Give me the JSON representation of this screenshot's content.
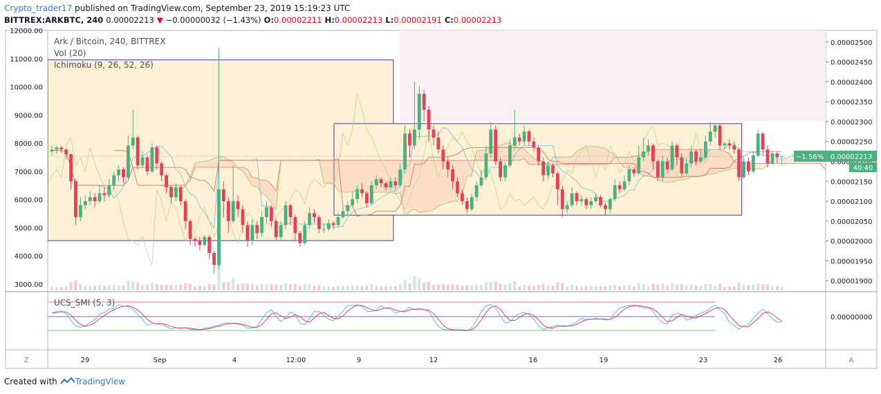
{
  "header": {
    "username": "Crypto_trader17",
    "published": "published on TradingView.com, September 23, 2019 15:19:23 UTC",
    "symbol": "BITTREX:ARKBTC, 240",
    "price": "0.00002213",
    "change_arrow": "▼",
    "change": "−0.00000032 (−1.43%)",
    "o_label": "O:",
    "o_value": "0.00002211",
    "h_label": "H:",
    "h_value": "0.00002213",
    "l_label": "L:",
    "l_value": "0.00002191",
    "c_label": "C:",
    "c_value": "0.00002213"
  },
  "legend": {
    "title": "Ark / Bitcoin, 240, BITTREX",
    "vol": "Vol (20)",
    "ichimoku": "Ichimoku (9, 26, 52, 26)",
    "smi": "UCS_SMI (5, 3)"
  },
  "price_badge": {
    "pct": "−1.56%",
    "price": "0.00002213",
    "countdown": "40:40"
  },
  "footer": {
    "created_with": "Created with",
    "brand": "TradingView"
  },
  "controls": {
    "left": "Z",
    "right": "A"
  },
  "colors": {
    "up": "#4caf7d",
    "down": "#e0425a",
    "badge": "#4caf7d",
    "brand": "#2e7bcf"
  },
  "chart_data": {
    "type": "candlestick",
    "title": "Ark / Bitcoin, 240, BITTREX",
    "left_axis_ticks": [
      "12000.00",
      "11000.00",
      "10000.00",
      "9000.00",
      "8000.00",
      "7000.00",
      "6000.00",
      "5000.00",
      "4000.00",
      "3000.00"
    ],
    "right_axis_ticks": [
      "0.00002500",
      "0.00002450",
      "0.00002400",
      "0.00002350",
      "0.00002300",
      "0.00002250",
      "0.00002200",
      "0.00002150",
      "0.00002100",
      "0.00002050",
      "0.00002000",
      "0.00001950",
      "0.00001900"
    ],
    "right_ylim": [
      1.89e-05,
      2.51e-05
    ],
    "x_ticks": [
      "29",
      "Sep",
      "4",
      "12:00",
      "9",
      "12",
      "16",
      "19",
      "23",
      "26"
    ],
    "smi_tick": "0.00000000",
    "candles": [
      [
        2.225e-05,
        2.23e-05,
        2.24e-05,
        2.215e-05
      ],
      [
        2.23e-05,
        2.235e-05,
        2.24e-05,
        2.22e-05
      ],
      [
        2.235e-05,
        2.23e-05,
        2.238e-05,
        2.222e-05
      ],
      [
        2.23e-05,
        2.218e-05,
        2.232e-05,
        2.205e-05
      ],
      [
        2.218e-05,
        2.15e-05,
        2.22e-05,
        2.13e-05
      ],
      [
        2.15e-05,
        2.06e-05,
        2.155e-05,
        2.04e-05
      ],
      [
        2.06e-05,
        2.09e-05,
        2.11e-05,
        2.05e-05
      ],
      [
        2.09e-05,
        2.1e-05,
        2.115e-05,
        2.08e-05
      ],
      [
        2.1e-05,
        2.11e-05,
        2.125e-05,
        2.09e-05
      ],
      [
        2.11e-05,
        2.1e-05,
        2.12e-05,
        2.085e-05
      ],
      [
        2.1e-05,
        2.12e-05,
        2.14e-05,
        2.095e-05
      ],
      [
        2.12e-05,
        2.115e-05,
        2.135e-05,
        2.1e-05
      ],
      [
        2.115e-05,
        2.14e-05,
        2.155e-05,
        2.11e-05
      ],
      [
        2.14e-05,
        2.165e-05,
        2.175e-05,
        2.13e-05
      ],
      [
        2.165e-05,
        2.18e-05,
        2.19e-05,
        2.15e-05
      ],
      [
        2.18e-05,
        2.16e-05,
        2.185e-05,
        2.145e-05
      ],
      [
        2.16e-05,
        2.24e-05,
        2.265e-05,
        2.155e-05
      ],
      [
        2.24e-05,
        2.26e-05,
        2.33e-05,
        2.23e-05
      ],
      [
        2.26e-05,
        2.19e-05,
        2.265e-05,
        2.18e-05
      ],
      [
        2.19e-05,
        2.21e-05,
        2.225e-05,
        2.185e-05
      ],
      [
        2.21e-05,
        2.175e-05,
        2.215e-05,
        2.165e-05
      ],
      [
        2.175e-05,
        2.235e-05,
        2.245e-05,
        2.17e-05
      ],
      [
        2.235e-05,
        2.195e-05,
        2.24e-05,
        2.18e-05
      ],
      [
        2.195e-05,
        2.165e-05,
        2.2e-05,
        2.15e-05
      ],
      [
        2.165e-05,
        2.135e-05,
        2.17e-05,
        2.12e-05
      ],
      [
        2.135e-05,
        2.11e-05,
        2.14e-05,
        2.095e-05
      ],
      [
        2.11e-05,
        2.135e-05,
        2.145e-05,
        2.1e-05
      ],
      [
        2.135e-05,
        2.1e-05,
        2.14e-05,
        2.09e-05
      ],
      [
        2.1e-05,
        2.05e-05,
        2.105e-05,
        2.03e-05
      ],
      [
        2.05e-05,
        2.005e-05,
        2.055e-05,
        1.99e-05
      ],
      [
        2.005e-05,
        2e-05,
        2.01e-05,
        1.985e-05
      ],
      [
        2e-05,
        1.99e-05,
        2.01e-05,
        1.975e-05
      ],
      [
        1.99e-05,
        2.01e-05,
        2.015e-05,
        1.985e-05
      ],
      [
        2.01e-05,
        1.97e-05,
        2.015e-05,
        1.955e-05
      ],
      [
        1.97e-05,
        1.94e-05,
        1.975e-05,
        1.92e-05
      ],
      [
        1.94e-05,
        2.13e-05,
        2.485e-05,
        1.93e-05
      ],
      [
        2.13e-05,
        2.1e-05,
        2.15e-05,
        2.06e-05
      ],
      [
        2.1e-05,
        2.05e-05,
        2.11e-05,
        2.02e-05
      ],
      [
        2.05e-05,
        2.1e-05,
        2.19e-05,
        2.045e-05
      ],
      [
        2.1e-05,
        2.08e-05,
        2.115e-05,
        2.06e-05
      ],
      [
        2.08e-05,
        2.04e-05,
        2.09e-05,
        2.02e-05
      ],
      [
        2.04e-05,
        2e-05,
        2.05e-05,
        1.985e-05
      ],
      [
        2e-05,
        2.04e-05,
        2.055e-05,
        1.99e-05
      ],
      [
        2.04e-05,
        2.02e-05,
        2.05e-05,
        2.005e-05
      ],
      [
        2.02e-05,
        2.06e-05,
        2.075e-05,
        2.01e-05
      ],
      [
        2.06e-05,
        2.085e-05,
        2.1e-05,
        2.045e-05
      ],
      [
        2.085e-05,
        2.05e-05,
        2.09e-05,
        2.035e-05
      ],
      [
        2.05e-05,
        2.01e-05,
        2.055e-05,
        2e-05
      ],
      [
        2.01e-05,
        2.04e-05,
        2.05e-05,
        2e-05
      ],
      [
        2.04e-05,
        2.09e-05,
        2.1e-05,
        2.03e-05
      ],
      [
        2.09e-05,
        2.06e-05,
        2.095e-05,
        2.04e-05
      ],
      [
        2.06e-05,
        2.02e-05,
        2.065e-05,
        2e-05
      ],
      [
        2.02e-05,
        1.995e-05,
        2.025e-05,
        1.985e-05
      ],
      [
        1.995e-05,
        2.04e-05,
        2.05e-05,
        1.99e-05
      ],
      [
        2.04e-05,
        2.07e-05,
        2.085e-05,
        2.03e-05
      ],
      [
        2.07e-05,
        2.06e-05,
        2.08e-05,
        2.045e-05
      ],
      [
        2.06e-05,
        2.03e-05,
        2.065e-05,
        2.02e-05
      ],
      [
        2.03e-05,
        2.03e-05,
        2.045e-05,
        2.02e-05
      ],
      [
        2.03e-05,
        2.045e-05,
        2.055e-05,
        2.025e-05
      ],
      [
        2.045e-05,
        2.04e-05,
        2.05e-05,
        2.03e-05
      ],
      [
        2.04e-05,
        2.06e-05,
        2.07e-05,
        2.035e-05
      ],
      [
        2.06e-05,
        2.075e-05,
        2.085e-05,
        2.055e-05
      ],
      [
        2.075e-05,
        2.09e-05,
        2.1e-05,
        2.065e-05
      ],
      [
        2.09e-05,
        2.105e-05,
        2.125e-05,
        2.085e-05
      ],
      [
        2.105e-05,
        2.13e-05,
        2.14e-05,
        2.095e-05
      ],
      [
        2.13e-05,
        2.12e-05,
        2.145e-05,
        2.11e-05
      ],
      [
        2.12e-05,
        2.095e-05,
        2.125e-05,
        2.085e-05
      ],
      [
        2.095e-05,
        2.14e-05,
        2.15e-05,
        2.09e-05
      ],
      [
        2.14e-05,
        2.155e-05,
        2.165e-05,
        2.13e-05
      ],
      [
        2.155e-05,
        2.145e-05,
        2.16e-05,
        2.135e-05
      ],
      [
        2.145e-05,
        2.135e-05,
        2.15e-05,
        2.125e-05
      ],
      [
        2.135e-05,
        2.15e-05,
        2.16e-05,
        2.13e-05
      ],
      [
        2.15e-05,
        2.14e-05,
        2.16e-05,
        2.13e-05
      ],
      [
        2.14e-05,
        2.18e-05,
        2.195e-05,
        2.135e-05
      ],
      [
        2.18e-05,
        2.27e-05,
        2.29e-05,
        2.17e-05
      ],
      [
        2.27e-05,
        2.24e-05,
        2.28e-05,
        2.21e-05
      ],
      [
        2.24e-05,
        2.28e-05,
        2.4e-05,
        2.23e-05
      ],
      [
        2.28e-05,
        2.37e-05,
        2.39e-05,
        2.255e-05
      ],
      [
        2.37e-05,
        2.33e-05,
        2.38e-05,
        2.3e-05
      ],
      [
        2.33e-05,
        2.28e-05,
        2.34e-05,
        2.25e-05
      ],
      [
        2.28e-05,
        2.26e-05,
        2.29e-05,
        2.24e-05
      ],
      [
        2.26e-05,
        2.23e-05,
        2.275e-05,
        2.22e-05
      ],
      [
        2.23e-05,
        2.2e-05,
        2.24e-05,
        2.18e-05
      ],
      [
        2.2e-05,
        2.18e-05,
        2.21e-05,
        2.16e-05
      ],
      [
        2.18e-05,
        2.15e-05,
        2.19e-05,
        2.13e-05
      ],
      [
        2.15e-05,
        2.12e-05,
        2.16e-05,
        2.11e-05
      ],
      [
        2.12e-05,
        2.1e-05,
        2.13e-05,
        2.09e-05
      ],
      [
        2.1e-05,
        2.08e-05,
        2.11e-05,
        2.07e-05
      ],
      [
        2.08e-05,
        2.11e-05,
        2.12e-05,
        2.075e-05
      ],
      [
        2.11e-05,
        2.14e-05,
        2.15e-05,
        2.1e-05
      ],
      [
        2.14e-05,
        2.16e-05,
        2.18e-05,
        2.135e-05
      ],
      [
        2.16e-05,
        2.22e-05,
        2.24e-05,
        2.155e-05
      ],
      [
        2.22e-05,
        2.28e-05,
        2.3e-05,
        2.21e-05
      ],
      [
        2.28e-05,
        2.2e-05,
        2.29e-05,
        2.19e-05
      ],
      [
        2.2e-05,
        2.16e-05,
        2.21e-05,
        2.15e-05
      ],
      [
        2.16e-05,
        2.19e-05,
        2.2e-05,
        2.15e-05
      ],
      [
        2.19e-05,
        2.24e-05,
        2.255e-05,
        2.185e-05
      ],
      [
        2.24e-05,
        2.26e-05,
        2.33e-05,
        2.23e-05
      ],
      [
        2.26e-05,
        2.25e-05,
        2.27e-05,
        2.24e-05
      ],
      [
        2.25e-05,
        2.275e-05,
        2.29e-05,
        2.24e-05
      ],
      [
        2.275e-05,
        2.25e-05,
        2.28e-05,
        2.24e-05
      ],
      [
        2.25e-05,
        2.235e-05,
        2.26e-05,
        2.225e-05
      ],
      [
        2.235e-05,
        2.2e-05,
        2.24e-05,
        2.19e-05
      ],
      [
        2.2e-05,
        2.165e-05,
        2.21e-05,
        2.15e-05
      ],
      [
        2.165e-05,
        2.19e-05,
        2.2e-05,
        2.155e-05
      ],
      [
        2.19e-05,
        2.17e-05,
        2.195e-05,
        2.16e-05
      ],
      [
        2.17e-05,
        2.13e-05,
        2.175e-05,
        2.09e-05
      ],
      [
        2.13e-05,
        2.08e-05,
        2.14e-05,
        2.06e-05
      ],
      [
        2.08e-05,
        2.09e-05,
        2.1e-05,
        2.07e-05
      ],
      [
        2.09e-05,
        2.12e-05,
        2.135e-05,
        2.085e-05
      ],
      [
        2.12e-05,
        2.1e-05,
        2.125e-05,
        2.09e-05
      ],
      [
        2.1e-05,
        2.105e-05,
        2.115e-05,
        2.09e-05
      ],
      [
        2.105e-05,
        2.09e-05,
        2.11e-05,
        2.08e-05
      ],
      [
        2.09e-05,
        2.1e-05,
        2.11e-05,
        2.08e-05
      ],
      [
        2.1e-05,
        2.11e-05,
        2.12e-05,
        2.095e-05
      ],
      [
        2.11e-05,
        2.09e-05,
        2.115e-05,
        2.085e-05
      ],
      [
        2.09e-05,
        2.08e-05,
        2.095e-05,
        2.065e-05
      ],
      [
        2.08e-05,
        2.105e-05,
        2.11e-05,
        2.07e-05
      ],
      [
        2.105e-05,
        2.14e-05,
        2.155e-05,
        2.1e-05
      ],
      [
        2.14e-05,
        2.13e-05,
        2.15e-05,
        2.12e-05
      ],
      [
        2.13e-05,
        2.15e-05,
        2.165e-05,
        2.125e-05
      ],
      [
        2.15e-05,
        2.18e-05,
        2.19e-05,
        2.14e-05
      ],
      [
        2.18e-05,
        2.17e-05,
        2.185e-05,
        2.16e-05
      ],
      [
        2.17e-05,
        2.21e-05,
        2.24e-05,
        2.165e-05
      ],
      [
        2.21e-05,
        2.225e-05,
        2.26e-05,
        2.2e-05
      ],
      [
        2.225e-05,
        2.24e-05,
        2.255e-05,
        2.215e-05
      ],
      [
        2.24e-05,
        2.2e-05,
        2.245e-05,
        2.18e-05
      ],
      [
        2.2e-05,
        2.16e-05,
        2.205e-05,
        2.15e-05
      ],
      [
        2.16e-05,
        2.2e-05,
        2.215e-05,
        2.15e-05
      ],
      [
        2.2e-05,
        2.18e-05,
        2.21e-05,
        2.17e-05
      ],
      [
        2.18e-05,
        2.24e-05,
        2.25e-05,
        2.175e-05
      ],
      [
        2.24e-05,
        2.21e-05,
        2.245e-05,
        2.19e-05
      ],
      [
        2.21e-05,
        2.17e-05,
        2.22e-05,
        2.16e-05
      ],
      [
        2.17e-05,
        2.195e-05,
        2.21e-05,
        2.165e-05
      ],
      [
        2.195e-05,
        2.225e-05,
        2.24e-05,
        2.185e-05
      ],
      [
        2.225e-05,
        2.2e-05,
        2.23e-05,
        2.19e-05
      ],
      [
        2.2e-05,
        2.21e-05,
        2.23e-05,
        2.195e-05
      ],
      [
        2.21e-05,
        2.25e-05,
        2.265e-05,
        2.205e-05
      ],
      [
        2.25e-05,
        2.275e-05,
        2.3e-05,
        2.24e-05
      ],
      [
        2.275e-05,
        2.29e-05,
        2.295e-05,
        2.26e-05
      ],
      [
        2.29e-05,
        2.24e-05,
        2.295e-05,
        2.23e-05
      ],
      [
        2.24e-05,
        2.245e-05,
        2.25e-05,
        2.23e-05
      ],
      [
        2.245e-05,
        2.24e-05,
        2.255e-05,
        2.23e-05
      ],
      [
        2.24e-05,
        2.23e-05,
        2.25e-05,
        2.22e-05
      ],
      [
        2.23e-05,
        2.16e-05,
        2.235e-05,
        2.15e-05
      ],
      [
        2.16e-05,
        2.2e-05,
        2.21e-05,
        2.155e-05
      ],
      [
        2.2e-05,
        2.175e-05,
        2.21e-05,
        2.165e-05
      ],
      [
        2.175e-05,
        2.215e-05,
        2.225e-05,
        2.17e-05
      ],
      [
        2.215e-05,
        2.27e-05,
        2.28e-05,
        2.21e-05
      ],
      [
        2.27e-05,
        2.23e-05,
        2.275e-05,
        2.215e-05
      ],
      [
        2.23e-05,
        2.195e-05,
        2.24e-05,
        2.185e-05
      ],
      [
        2.195e-05,
        2.22e-05,
        2.225e-05,
        2.19e-05
      ],
      [
        2.22e-05,
        2.21e-05,
        2.225e-05,
        2.195e-05
      ],
      [
        2.211e-05,
        2.213e-05,
        2.213e-05,
        2.191e-05
      ]
    ],
    "annotation_boxes": [
      {
        "start": 0,
        "end": 71,
        "top": 2.455e-05,
        "bottom": 2.001e-05,
        "fill": "#fdf0d5",
        "stroke": "#3b3f9c"
      },
      {
        "start": 60,
        "end": 144,
        "top": 2.295e-05,
        "bottom": 2.065e-05,
        "fill": "#fdf0d5",
        "stroke": "#3b3f9c"
      }
    ]
  }
}
